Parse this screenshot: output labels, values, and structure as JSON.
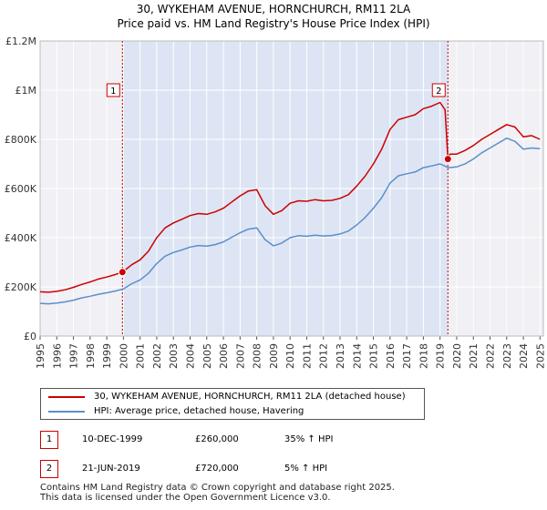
{
  "chart_data": {
    "type": "line",
    "title": "30, WYKEHAM AVENUE, HORNCHURCH, RM11 2LA",
    "subtitle": "Price paid vs. HM Land Registry's House Price Index (HPI)",
    "xlabel": "",
    "ylabel": "",
    "xlim": [
      1995,
      2025.2
    ],
    "ylim": [
      0,
      1200000
    ],
    "x_ticks": [
      1995,
      1996,
      1997,
      1998,
      1999,
      2000,
      2001,
      2002,
      2003,
      2004,
      2005,
      2006,
      2007,
      2008,
      2009,
      2010,
      2011,
      2012,
      2013,
      2014,
      2015,
      2016,
      2017,
      2018,
      2019,
      2020,
      2021,
      2022,
      2023,
      2024,
      2025
    ],
    "x_tick_labels": [
      "1995",
      "1996",
      "1997",
      "1998",
      "1999",
      "2000",
      "2001",
      "2002",
      "2003",
      "2004",
      "2005",
      "2006",
      "2007",
      "2008",
      "2009",
      "2010",
      "2011",
      "2012",
      "2013",
      "2014",
      "2015",
      "2016",
      "2017",
      "2018",
      "2019",
      "2020",
      "2021",
      "2022",
      "2023",
      "2024",
      "2025"
    ],
    "y_ticks": [
      0,
      200000,
      400000,
      600000,
      800000,
      1000000,
      1200000
    ],
    "y_tick_labels": [
      "£0",
      "£200K",
      "£400K",
      "£600K",
      "£800K",
      "£1M",
      "£1.2M"
    ],
    "grid": true,
    "shaded_region": [
      1999.94,
      2019.47
    ],
    "series": [
      {
        "name": "30, WYKEHAM AVENUE, HORNCHURCH, RM11 2LA (detached house)",
        "color": "#cc0000",
        "x": [
          1995.0,
          1995.5,
          1996.0,
          1996.5,
          1997.0,
          1997.5,
          1998.0,
          1998.5,
          1999.0,
          1999.5,
          1999.94,
          2000.5,
          2001.0,
          2001.5,
          2002.0,
          2002.5,
          2003.0,
          2003.5,
          2004.0,
          2004.5,
          2005.0,
          2005.5,
          2006.0,
          2006.5,
          2007.0,
          2007.5,
          2008.0,
          2008.5,
          2009.0,
          2009.5,
          2010.0,
          2010.5,
          2011.0,
          2011.5,
          2012.0,
          2012.5,
          2013.0,
          2013.5,
          2014.0,
          2014.5,
          2015.0,
          2015.5,
          2016.0,
          2016.5,
          2017.0,
          2017.5,
          2018.0,
          2018.5,
          2019.0,
          2019.3,
          2019.47,
          2019.6,
          2020.0,
          2020.5,
          2021.0,
          2021.5,
          2022.0,
          2022.5,
          2023.0,
          2023.5,
          2024.0,
          2024.5,
          2025.0
        ],
        "values": [
          180000,
          178000,
          182000,
          188000,
          198000,
          210000,
          220000,
          232000,
          240000,
          250000,
          260000,
          290000,
          310000,
          345000,
          400000,
          440000,
          460000,
          475000,
          490000,
          498000,
          495000,
          505000,
          520000,
          545000,
          570000,
          590000,
          595000,
          530000,
          495000,
          510000,
          540000,
          550000,
          548000,
          555000,
          550000,
          552000,
          560000,
          575000,
          610000,
          650000,
          700000,
          760000,
          840000,
          880000,
          890000,
          900000,
          925000,
          935000,
          950000,
          920000,
          720000,
          740000,
          740000,
          755000,
          775000,
          800000,
          820000,
          840000,
          860000,
          850000,
          810000,
          815000,
          800000
        ]
      },
      {
        "name": "HPI: Average price, detached house, Havering",
        "color": "#5b8fc9",
        "x": [
          1995.0,
          1995.5,
          1996.0,
          1996.5,
          1997.0,
          1997.5,
          1998.0,
          1998.5,
          1999.0,
          1999.5,
          2000.0,
          2000.5,
          2001.0,
          2001.5,
          2002.0,
          2002.5,
          2003.0,
          2003.5,
          2004.0,
          2004.5,
          2005.0,
          2005.5,
          2006.0,
          2006.5,
          2007.0,
          2007.5,
          2008.0,
          2008.5,
          2009.0,
          2009.5,
          2010.0,
          2010.5,
          2011.0,
          2011.5,
          2012.0,
          2012.5,
          2013.0,
          2013.5,
          2014.0,
          2014.5,
          2015.0,
          2015.5,
          2016.0,
          2016.5,
          2017.0,
          2017.5,
          2018.0,
          2018.5,
          2019.0,
          2019.5,
          2020.0,
          2020.5,
          2021.0,
          2021.5,
          2022.0,
          2022.5,
          2023.0,
          2023.5,
          2024.0,
          2024.5,
          2025.0
        ],
        "values": [
          133000,
          131000,
          134000,
          139000,
          146000,
          155000,
          162000,
          170000,
          176000,
          183000,
          192000,
          213000,
          228000,
          255000,
          295000,
          325000,
          340000,
          350000,
          362000,
          368000,
          366000,
          372000,
          383000,
          402000,
          420000,
          435000,
          440000,
          392000,
          367000,
          378000,
          400000,
          408000,
          406000,
          410000,
          407000,
          409000,
          415000,
          427000,
          452000,
          482000,
          520000,
          563000,
          622000,
          652000,
          660000,
          667000,
          685000,
          692000,
          700000,
          685000,
          688000,
          700000,
          720000,
          745000,
          765000,
          785000,
          805000,
          792000,
          760000,
          765000,
          762000
        ]
      }
    ],
    "transactions": [
      {
        "num": "1",
        "x": 1999.94,
        "value": 260000,
        "date": "10-DEC-1999",
        "price": "£260,000",
        "hpi": "35% ↑ HPI"
      },
      {
        "num": "2",
        "x": 2019.47,
        "value": 720000,
        "date": "21-JUN-2019",
        "price": "£720,000",
        "hpi": "5% ↑ HPI"
      }
    ]
  },
  "legend": {
    "items": [
      {
        "label": "30, WYKEHAM AVENUE, HORNCHURCH, RM11 2LA (detached house)",
        "color": "#cc0000"
      },
      {
        "label": "HPI: Average price, detached house, Havering",
        "color": "#5b8fc9"
      }
    ]
  },
  "footer": {
    "line1": "Contains HM Land Registry data © Crown copyright and database right 2025.",
    "line2": "This data is licensed under the Open Government Licence v3.0."
  }
}
